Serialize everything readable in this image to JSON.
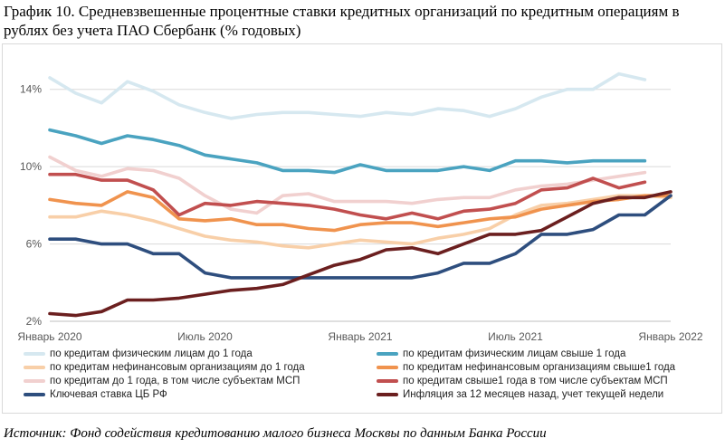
{
  "title": "График 10. Средневзвешенные процентные ставки кредитных организаций по кредитным операциям в рублях без учета ПАО Сбербанк (% годовых)",
  "source": "Источник: Фонд содействия кредитованию малого бизнеса Москвы по данным Банка России",
  "chart_data": {
    "type": "line",
    "title": "График 10. Средневзвешенные процентные ставки кредитных организаций по кредитным операциям в рублях без учета ПАО Сбербанк (% годовых)",
    "xlabel": "",
    "ylabel": "% годовых",
    "ylim": [
      2,
      16
    ],
    "yticks": [
      2,
      6,
      10,
      14
    ],
    "ytick_labels": [
      "2%",
      "6%",
      "10%",
      "14%"
    ],
    "x": [
      0,
      1,
      2,
      3,
      4,
      5,
      6,
      7,
      8,
      9,
      10,
      11,
      12,
      13,
      14,
      15,
      16,
      17,
      18,
      19,
      20,
      21,
      22,
      23,
      24
    ],
    "xticks": [
      0,
      6,
      12,
      18,
      24
    ],
    "xtick_labels": [
      "Январь 2020",
      "Июль 2020",
      "Январь 2021",
      "Июль 2021",
      "Январь 2022"
    ],
    "series": [
      {
        "name": "по кредитам физическим лицам до 1 года",
        "color": "#d6e8f0",
        "values": [
          14.6,
          13.8,
          13.3,
          14.4,
          13.9,
          13.2,
          12.8,
          12.5,
          12.7,
          12.8,
          12.8,
          12.7,
          12.6,
          12.8,
          12.7,
          13.0,
          12.9,
          12.6,
          13.0,
          13.6,
          14.0,
          14.0,
          14.8,
          14.5,
          null
        ]
      },
      {
        "name": "по кредитам физическим лицам свыше 1 года",
        "color": "#4aa3c0",
        "values": [
          11.9,
          11.6,
          11.2,
          11.6,
          11.4,
          11.1,
          10.6,
          10.4,
          10.2,
          9.8,
          9.8,
          9.7,
          10.1,
          9.8,
          9.8,
          9.8,
          10.0,
          9.8,
          10.3,
          10.3,
          10.2,
          10.3,
          10.3,
          10.3,
          null
        ]
      },
      {
        "name": "по кредитам нефинансовым организациям до 1 года",
        "color": "#f8cfa8",
        "values": [
          7.4,
          7.4,
          7.7,
          7.5,
          7.2,
          6.8,
          6.4,
          6.2,
          6.1,
          5.9,
          5.8,
          6.0,
          6.2,
          6.1,
          6.0,
          6.3,
          6.5,
          6.8,
          7.5,
          8.0,
          8.1,
          8.3,
          8.5,
          8.5,
          8.4
        ]
      },
      {
        "name": "по кредитам нефинансовым организациям свыше1 года",
        "color": "#f0934e",
        "values": [
          8.3,
          8.1,
          8.0,
          8.7,
          8.4,
          7.3,
          7.2,
          7.3,
          7.0,
          7.0,
          6.8,
          6.7,
          7.0,
          7.1,
          7.1,
          6.9,
          7.1,
          7.3,
          7.4,
          7.8,
          8.0,
          8.2,
          8.3,
          8.5,
          8.5
        ]
      },
      {
        "name": "по кредитам до 1 года, в том числе субъектам МСП",
        "color": "#f1d0cf",
        "values": [
          10.5,
          9.8,
          9.5,
          9.9,
          9.8,
          9.4,
          8.5,
          7.8,
          7.6,
          8.5,
          8.6,
          8.2,
          8.2,
          8.2,
          8.1,
          8.3,
          8.4,
          8.4,
          8.8,
          9.0,
          9.1,
          9.3,
          9.5,
          9.7,
          null
        ]
      },
      {
        "name": "по кредитам свыше1 года в том числе субъектам МСП",
        "color": "#c14f4f",
        "values": [
          9.6,
          9.6,
          9.3,
          9.3,
          8.8,
          7.5,
          8.1,
          8.0,
          8.2,
          8.1,
          8.0,
          7.8,
          7.5,
          7.3,
          7.6,
          7.3,
          7.7,
          7.8,
          8.1,
          8.8,
          8.9,
          9.4,
          8.9,
          9.2,
          null
        ]
      },
      {
        "name": "Ключевая ставка ЦБ РФ",
        "color": "#2e4e7e",
        "values": [
          6.25,
          6.25,
          6.0,
          6.0,
          5.5,
          5.5,
          4.5,
          4.25,
          4.25,
          4.25,
          4.25,
          4.25,
          4.25,
          4.25,
          4.25,
          4.5,
          5.0,
          5.0,
          5.5,
          6.5,
          6.5,
          6.75,
          7.5,
          7.5,
          8.5
        ]
      },
      {
        "name": "Инфляция за 12 месяцев назад, учет текущей недели",
        "color": "#6b1f1f",
        "values": [
          2.4,
          2.3,
          2.5,
          3.1,
          3.1,
          3.2,
          3.4,
          3.6,
          3.7,
          3.9,
          4.4,
          4.9,
          5.2,
          5.7,
          5.8,
          5.5,
          6.0,
          6.5,
          6.5,
          6.7,
          7.4,
          8.1,
          8.4,
          8.4,
          8.7
        ]
      }
    ]
  }
}
